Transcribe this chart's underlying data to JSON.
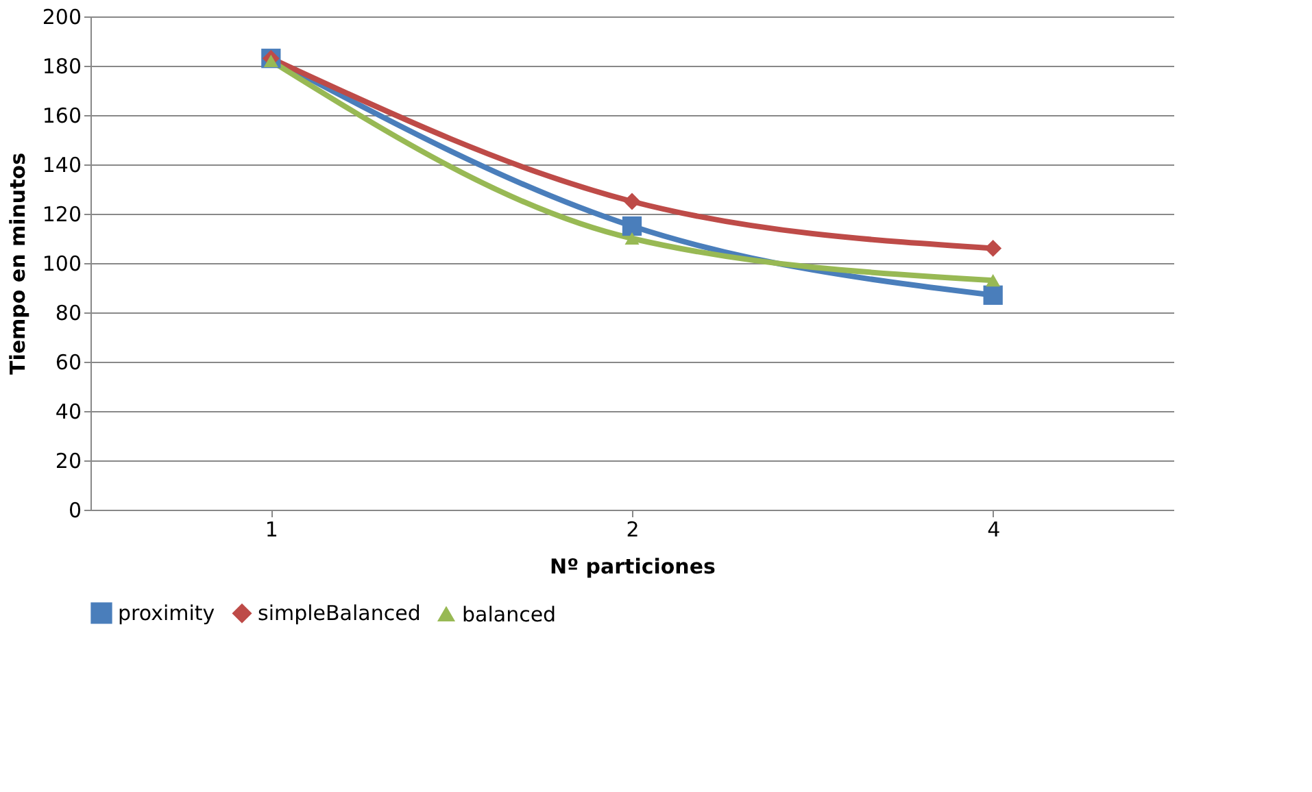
{
  "chart_data": {
    "type": "line",
    "xlabel": "Nº particiones",
    "ylabel": "Tiempo en minutos",
    "categories": [
      "1",
      "2",
      "4"
    ],
    "ylim": [
      0,
      200
    ],
    "yticks": [
      0,
      20,
      40,
      60,
      80,
      100,
      120,
      140,
      160,
      180,
      200
    ],
    "grid": "y",
    "legend": "bottom",
    "line_style": "solid",
    "series": [
      {
        "name": "proximity",
        "color": "#4a7ebb",
        "marker": "square",
        "values": [
          183,
          115,
          87
        ]
      },
      {
        "name": "simpleBalanced",
        "color": "#be4b48",
        "marker": "diamond",
        "values": [
          183,
          125,
          106
        ]
      },
      {
        "name": "balanced",
        "color": "#98b954",
        "marker": "triangle",
        "values": [
          182,
          110,
          93
        ]
      }
    ]
  }
}
